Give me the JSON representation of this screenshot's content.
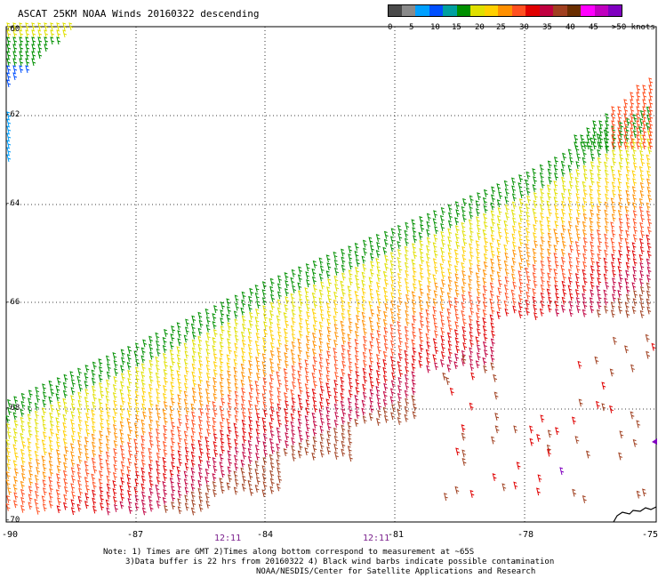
{
  "title": "ASCAT 25KM NOAA Winds 20160322 descending",
  "colorbar": {
    "colors": [
      "#4a4a4a",
      "#8a8a8a",
      "#00a0ff",
      "#0050ff",
      "#00a0a0",
      "#009000",
      "#e0e000",
      "#ffd000",
      "#ff9000",
      "#ff5020",
      "#e00000",
      "#c00040",
      "#a04020",
      "#6a2e00",
      "#ff00ff",
      "#c000c0",
      "#8000c0"
    ],
    "labels": [
      "0",
      "5",
      "10",
      "15",
      "20",
      "25",
      "30",
      "35",
      "40",
      "45",
      ">50 knots"
    ]
  },
  "map": {
    "lat_labels": [
      "-60",
      "-62",
      "-64",
      "-66",
      "-68",
      "-70"
    ],
    "lon_labels": [
      "-90",
      "-87",
      "-84",
      "-81",
      "-78",
      "-75"
    ],
    "time_labels": [
      "12:11",
      "12:11"
    ],
    "lon_range": [
      -90,
      -75
    ],
    "lat_range": [
      -70,
      -60
    ],
    "grid": true
  },
  "notes": {
    "line1": "Note: 1) Times are GMT 2)Times along bottom correspond to measurement at ~65S",
    "line2": "3)Data buffer is 22 hrs from 20160322 4) Black wind barbs indicate possible contamination",
    "line3": "NOAA/NESDIS/Center for Satellite Applications and Research"
  }
}
